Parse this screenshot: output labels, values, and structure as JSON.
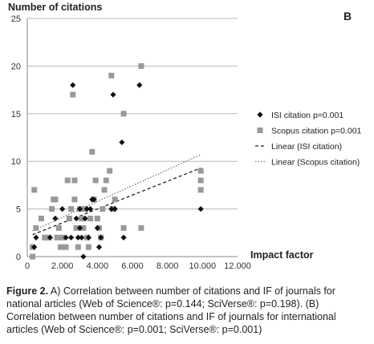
{
  "chart_data": {
    "type": "scatter",
    "panel_label": "B",
    "ylabel": "Number of citations",
    "xlabel": "Impact factor",
    "xlim": [
      0,
      12
    ],
    "ylim": [
      0,
      25
    ],
    "x_ticks": [
      "0",
      "2.000",
      "4.000",
      "6.000",
      "8.000",
      "10.000",
      "12.000"
    ],
    "y_ticks": [
      "0",
      "5",
      "10",
      "15",
      "20",
      "25"
    ],
    "x_tick_values": [
      0,
      2,
      4,
      6,
      8,
      10,
      12
    ],
    "y_tick_values": [
      0,
      5,
      10,
      15,
      20,
      25
    ],
    "grid": "horizontal",
    "legend_position": "right",
    "series": [
      {
        "name": "ISI citation  p=0.001",
        "marker": "diamond",
        "color": "#111111",
        "points": [
          [
            0.4,
            1
          ],
          [
            0.5,
            2
          ],
          [
            1.3,
            2
          ],
          [
            1.6,
            4
          ],
          [
            2.0,
            5
          ],
          [
            2.2,
            2
          ],
          [
            2.5,
            2
          ],
          [
            2.6,
            18
          ],
          [
            2.8,
            4
          ],
          [
            2.9,
            2
          ],
          [
            3.0,
            3
          ],
          [
            3.0,
            5
          ],
          [
            3.1,
            2
          ],
          [
            3.2,
            0
          ],
          [
            3.3,
            4
          ],
          [
            3.4,
            5
          ],
          [
            3.5,
            2
          ],
          [
            3.6,
            5
          ],
          [
            3.7,
            6
          ],
          [
            3.8,
            6
          ],
          [
            4.0,
            3
          ],
          [
            4.1,
            1
          ],
          [
            4.2,
            2
          ],
          [
            4.8,
            5
          ],
          [
            4.9,
            17
          ],
          [
            5.0,
            5
          ],
          [
            5.4,
            12
          ],
          [
            5.5,
            2
          ],
          [
            6.4,
            18
          ],
          [
            9.9,
            5
          ]
        ]
      },
      {
        "name": "Scopus citation  p=0.001",
        "marker": "square",
        "color": "#999999",
        "points": [
          [
            0.3,
            0
          ],
          [
            0.3,
            1
          ],
          [
            0.4,
            7
          ],
          [
            0.5,
            3
          ],
          [
            0.8,
            4
          ],
          [
            1.0,
            2
          ],
          [
            1.2,
            2
          ],
          [
            1.4,
            5
          ],
          [
            1.5,
            6
          ],
          [
            1.6,
            6
          ],
          [
            1.7,
            2
          ],
          [
            1.8,
            3
          ],
          [
            1.9,
            1
          ],
          [
            2.0,
            2
          ],
          [
            2.2,
            1
          ],
          [
            2.3,
            8
          ],
          [
            2.4,
            4
          ],
          [
            2.5,
            5
          ],
          [
            2.6,
            17
          ],
          [
            2.7,
            8
          ],
          [
            2.7,
            6
          ],
          [
            2.8,
            3
          ],
          [
            2.9,
            1
          ],
          [
            3.0,
            5
          ],
          [
            3.1,
            4
          ],
          [
            3.2,
            3
          ],
          [
            3.3,
            5
          ],
          [
            3.4,
            2
          ],
          [
            3.5,
            1
          ],
          [
            3.6,
            4
          ],
          [
            3.7,
            11
          ],
          [
            3.8,
            6
          ],
          [
            3.9,
            8
          ],
          [
            4.0,
            4
          ],
          [
            4.1,
            3
          ],
          [
            4.2,
            2
          ],
          [
            4.3,
            5
          ],
          [
            4.4,
            7
          ],
          [
            4.5,
            8
          ],
          [
            4.7,
            9
          ],
          [
            4.8,
            19
          ],
          [
            4.9,
            5
          ],
          [
            5.0,
            6
          ],
          [
            5.5,
            3
          ],
          [
            5.5,
            15
          ],
          [
            6.5,
            20
          ],
          [
            6.5,
            3
          ],
          [
            9.9,
            7
          ],
          [
            9.9,
            8
          ],
          [
            9.9,
            9
          ]
        ]
      }
    ],
    "trendlines": [
      {
        "name": "Linear (ISI citation)",
        "style": "dashed",
        "color": "#222222",
        "from": [
          0.3,
          2.3
        ],
        "to": [
          9.9,
          9.3
        ]
      },
      {
        "name": "Linear (Scopus citation)",
        "style": "dotted",
        "color": "#777777",
        "from": [
          0.3,
          2.7
        ],
        "to": [
          9.9,
          10.7
        ]
      }
    ]
  },
  "caption": {
    "label": "Figure 2.",
    "text": " A) Correlation between number of citations and IF of journals for national articles (Web of Science®: p=0.144; SciVerse®: p=0.198). (B) Correlation between number of citations and IF of journals for international articles (Web of Science®: p=0.001; SciVerse®: p=0.001)"
  }
}
